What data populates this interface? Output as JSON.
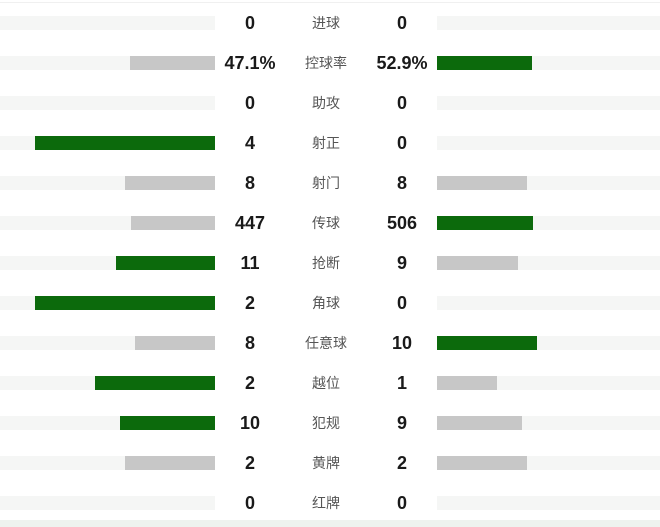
{
  "chart_data": {
    "type": "bar",
    "subtype": "paired-horizontal-comparison",
    "title": "",
    "legend": "none",
    "categories": [
      "进球",
      "控球率",
      "助攻",
      "射正",
      "射门",
      "传球",
      "抢断",
      "角球",
      "任意球",
      "越位",
      "犯规",
      "黄牌",
      "红牌"
    ],
    "series": [
      {
        "name": "left-team",
        "values": [
          "0",
          "47.1%",
          "0",
          "4",
          "8",
          "447",
          "11",
          "2",
          "8",
          "2",
          "10",
          "2",
          "0"
        ]
      },
      {
        "name": "right-team",
        "values": [
          "0",
          "52.9%",
          "0",
          "0",
          "8",
          "506",
          "9",
          "0",
          "10",
          "1",
          "9",
          "2",
          "0"
        ]
      }
    ],
    "value_scale": "bar length proportional to value / (left+right) within each row, max 180px of 215px track",
    "highlight_rule": "higher value of the pair is green, lower or equal value is gray, zero value shows empty track"
  },
  "colors": {
    "green_fill": "#0c6a0c",
    "gray_fill": "#c7c7c7",
    "track": "#f5f6f5",
    "value_text": "#1a1a1a",
    "label_text": "#555555",
    "footer_strip": "#eef2ee",
    "hairline": "#f0f0f0"
  }
}
